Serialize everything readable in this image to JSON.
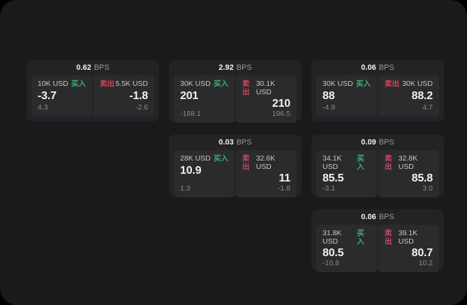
{
  "labels": {
    "bps_unit": "BPS",
    "buy": "买入",
    "sell": "卖出"
  },
  "colors": {
    "page_bg": "#1a1a1c",
    "card_bg": "#232326",
    "panel_bg": "#2b2b2e",
    "buy_accent": "#3fae6e",
    "sell_accent": "#c9485e"
  },
  "cards": [
    {
      "bps": "0.62",
      "buy": {
        "size": "10K USD",
        "price": "-3.7",
        "delta": "4.3"
      },
      "sell": {
        "size": "5.5K USD",
        "price": "-1.8",
        "delta": "-2.6"
      }
    },
    {
      "bps": "2.92",
      "buy": {
        "size": "30K USD",
        "price": "201",
        "delta": "-188.1"
      },
      "sell": {
        "size": "30.1K USD",
        "price": "210",
        "delta": "196.5"
      }
    },
    {
      "bps": "0.06",
      "buy": {
        "size": "30K USD",
        "price": "88",
        "delta": "-4.9"
      },
      "sell": {
        "size": "30K USD",
        "price": "88.2",
        "delta": "4.7"
      }
    },
    {
      "bps": "0.03",
      "buy": {
        "size": "28K USD",
        "price": "10.9",
        "delta": "1.3"
      },
      "sell": {
        "size": "32.6K USD",
        "price": "11",
        "delta": "-1.8"
      }
    },
    {
      "bps": "0.09",
      "buy": {
        "size": "34.1K USD",
        "price": "85.5",
        "delta": "-3.1"
      },
      "sell": {
        "size": "32.8K USD",
        "price": "85.8",
        "delta": "3.0"
      }
    },
    {
      "bps": "0.06",
      "buy": {
        "size": "31.8K USD",
        "price": "80.5",
        "delta": "-10.8"
      },
      "sell": {
        "size": "39.1K USD",
        "price": "80.7",
        "delta": "10.2"
      }
    }
  ]
}
